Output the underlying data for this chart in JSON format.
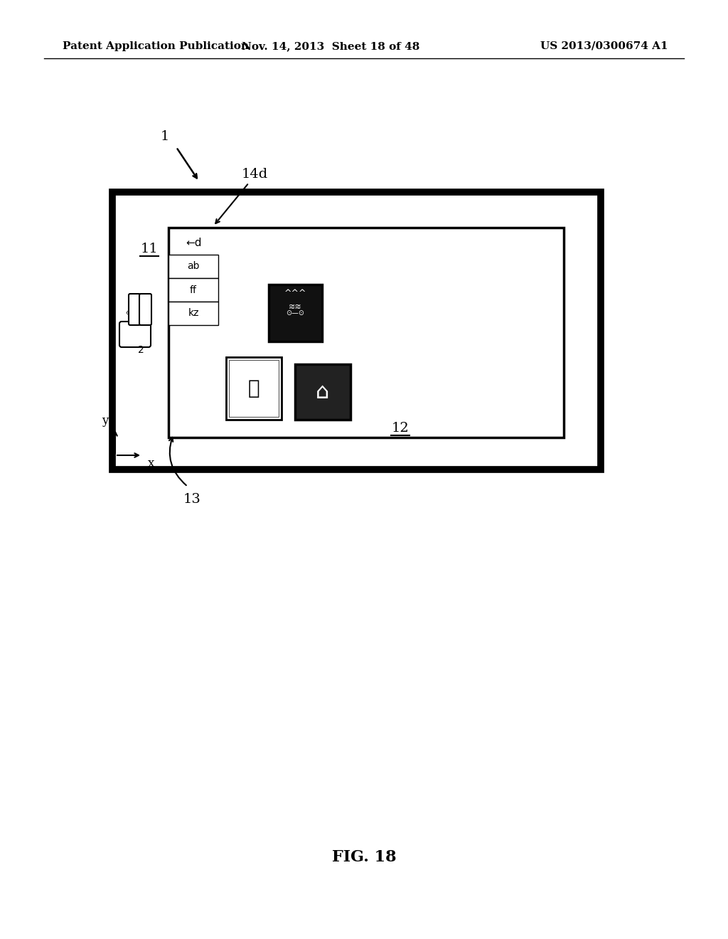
{
  "bg_color": "#ffffff",
  "header_left": "Patent Application Publication",
  "header_mid": "Nov. 14, 2013  Sheet 18 of 48",
  "header_right": "US 2013/0300674 A1",
  "footer": "FIG. 18",
  "label_1": "1",
  "label_11": "11",
  "label_12": "12",
  "label_13": "13",
  "label_14d": "14d",
  "kbd_items": [
    "←d",
    "ab",
    "ff",
    "kz"
  ]
}
